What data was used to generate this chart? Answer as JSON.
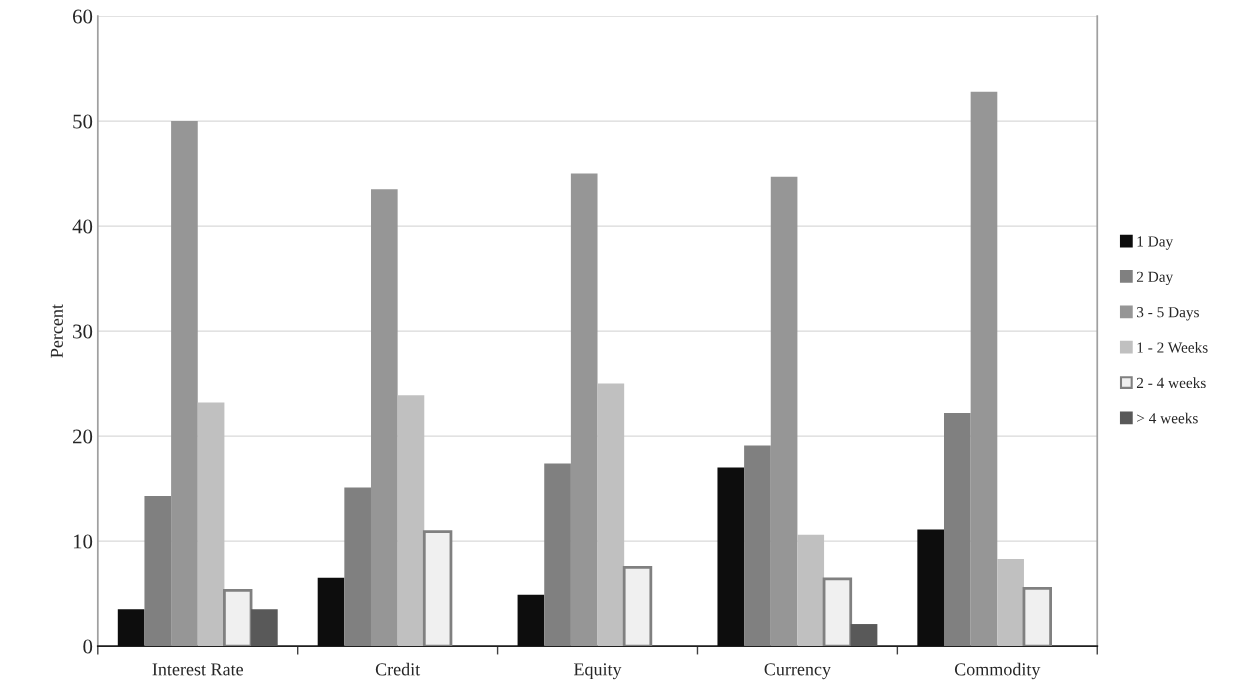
{
  "chart_data": {
    "type": "bar",
    "ylabel": "Percent",
    "categories": [
      "Interest Rate",
      "Credit",
      "Equity",
      "Currency",
      "Commodity"
    ],
    "series": [
      {
        "name": "1 Day",
        "color": "#0d0d0d",
        "values": [
          3.5,
          6.5,
          4.9,
          17.0,
          11.1
        ]
      },
      {
        "name": "2 Day",
        "color": "#808080",
        "values": [
          14.3,
          15.1,
          17.4,
          19.1,
          22.2
        ]
      },
      {
        "name": "3 - 5 Days",
        "color": "#969696",
        "values": [
          50.0,
          43.5,
          45.0,
          44.7,
          52.8
        ]
      },
      {
        "name": "1 - 2 Weeks",
        "color": "#c0c0c0",
        "values": [
          23.2,
          23.9,
          25.0,
          10.6,
          8.3
        ]
      },
      {
        "name": "2 - 4 weeks",
        "color": "#f0f0f0",
        "values": [
          5.3,
          10.9,
          7.5,
          6.4,
          5.5
        ]
      },
      {
        "name": "> 4 weeks",
        "color": "#595959",
        "values": [
          3.5,
          null,
          null,
          2.1,
          null
        ]
      }
    ],
    "ylim": [
      0,
      60
    ],
    "yticks": [
      0,
      10,
      20,
      30,
      40,
      50,
      60
    ],
    "grid": "y",
    "legend": "right"
  }
}
